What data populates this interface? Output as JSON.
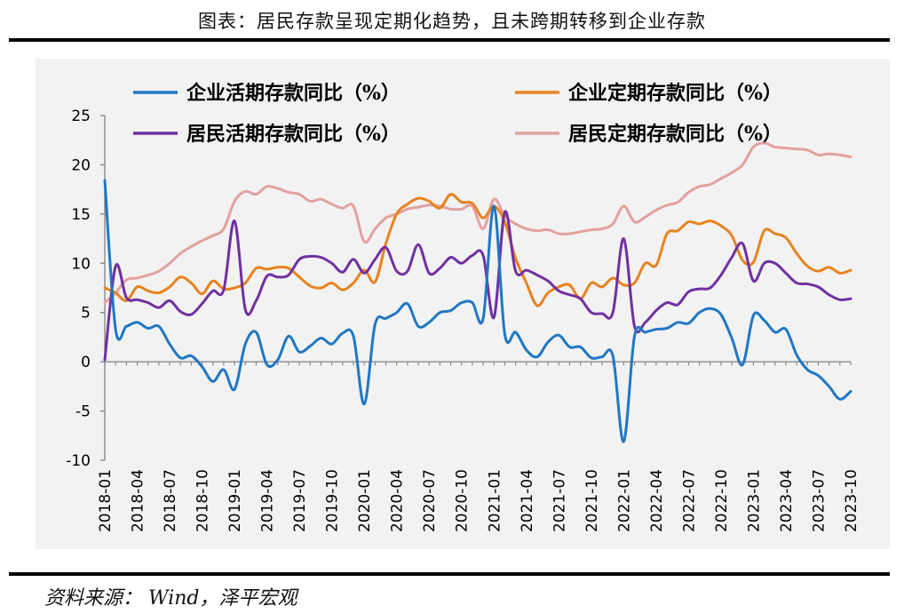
{
  "header": {
    "title": "图表：居民存款呈现定期化趋势，且未跨期转移到企业存款"
  },
  "footer": {
    "source": "资料来源：  Wind，泽平宏观"
  },
  "chart_data": {
    "type": "line",
    "title": "图表：居民存款呈现定期化趋势，且未跨期转移到企业存款",
    "xlabel": "",
    "ylabel": "",
    "ylim": [
      -10,
      25
    ],
    "yticks": [
      25,
      20,
      15,
      10,
      5,
      0,
      -5,
      -10
    ],
    "yticks_text": [
      "25",
      "20",
      "15",
      "10",
      "5",
      "0",
      "-5",
      "-10"
    ],
    "x_tick_labels": [
      "2018-01",
      "2018-04",
      "2018-07",
      "2018-10",
      "2019-01",
      "2019-04",
      "2019-07",
      "2019-10",
      "2020-01",
      "2020-04",
      "2020-07",
      "2020-10",
      "2021-01",
      "2021-04",
      "2021-07",
      "2021-10",
      "2022-01",
      "2022-04",
      "2022-07",
      "2022-10",
      "2023-01",
      "2023-04",
      "2023-07",
      "2023-10"
    ],
    "legend_position": "top",
    "grid": false,
    "series": [
      {
        "name": "企业活期存款同比（%）",
        "color": "#1f77c4",
        "values": [
          18.4,
          3.3,
          3.6,
          4.0,
          3.4,
          3.6,
          1.8,
          0.4,
          0.6,
          -0.5,
          -2.0,
          -0.8,
          -2.8,
          1.8,
          3.0,
          -0.3,
          0.2,
          2.6,
          1.0,
          1.6,
          2.4,
          1.8,
          2.9,
          2.6,
          -4.3,
          3.8,
          4.4,
          5.0,
          5.9,
          3.6,
          4.0,
          5.0,
          5.2,
          6.0,
          6.0,
          4.4,
          15.8,
          2.8,
          3.0,
          1.2,
          0.5,
          2.0,
          2.7,
          1.5,
          1.5,
          0.4,
          0.5,
          0.6,
          -8.1,
          2.6,
          3.0,
          3.3,
          3.4,
          4.0,
          3.9,
          5.0,
          5.4,
          4.8,
          2.4,
          -0.3,
          4.7,
          4.2,
          3.0,
          3.3,
          0.7,
          -0.8,
          -1.4,
          -2.5,
          -3.8,
          -3.0
        ]
      },
      {
        "name": "企业定期存款同比（%）",
        "color": "#e8821e",
        "values": [
          7.5,
          7.0,
          6.2,
          7.6,
          7.2,
          7.0,
          7.6,
          8.6,
          8.0,
          6.9,
          8.2,
          7.4,
          7.5,
          8.0,
          9.5,
          9.4,
          9.6,
          9.5,
          8.6,
          7.7,
          7.5,
          8.0,
          7.3,
          8.0,
          9.3,
          8.1,
          12.0,
          15.0,
          16.0,
          16.6,
          16.3,
          15.6,
          17.0,
          16.2,
          16.1,
          14.6,
          15.8,
          14.2,
          10.5,
          8.0,
          5.7,
          7.0,
          7.6,
          7.8,
          6.4,
          8.0,
          7.6,
          8.5,
          7.8,
          8.0,
          10.0,
          9.8,
          13.0,
          13.3,
          14.2,
          14.0,
          14.3,
          13.8,
          12.8,
          10.3,
          10.1,
          13.3,
          13.0,
          12.6,
          11.0,
          9.7,
          9.2,
          9.6,
          9.0,
          9.3
        ]
      },
      {
        "name": "居民活期存款同比（%）",
        "color": "#7030a0",
        "values": [
          0.2,
          9.7,
          6.5,
          6.3,
          6.0,
          5.5,
          6.2,
          5.1,
          4.8,
          5.9,
          7.2,
          7.3,
          14.3,
          5.3,
          6.2,
          8.7,
          8.6,
          8.8,
          10.4,
          10.7,
          10.6,
          10.0,
          9.1,
          10.4,
          9.0,
          10.4,
          11.6,
          9.2,
          9.2,
          11.9,
          9.0,
          9.5,
          10.6,
          10.0,
          10.8,
          10.8,
          4.5,
          15.2,
          9.2,
          9.3,
          8.8,
          8.2,
          7.2,
          6.8,
          6.4,
          5.0,
          4.9,
          5.0,
          12.5,
          3.6,
          4.0,
          5.2,
          6.0,
          5.8,
          7.1,
          7.4,
          7.5,
          8.8,
          10.6,
          12.0,
          8.2,
          10.0,
          10.0,
          9.0,
          8.0,
          7.9,
          7.6,
          6.8,
          6.3,
          6.4
        ]
      },
      {
        "name": "居民定期存款同比（%）",
        "color": "#e3a0a0",
        "values": [
          6.0,
          7.0,
          8.3,
          8.5,
          8.8,
          9.2,
          10.0,
          11.0,
          11.7,
          12.3,
          12.8,
          13.5,
          16.3,
          17.3,
          17.0,
          17.8,
          17.6,
          17.2,
          17.0,
          16.3,
          16.5,
          16.0,
          15.6,
          15.8,
          12.2,
          13.5,
          14.6,
          15.0,
          15.5,
          15.7,
          15.9,
          15.8,
          15.5,
          15.5,
          15.8,
          13.5,
          16.5,
          14.8,
          14.0,
          13.5,
          13.3,
          13.4,
          13.0,
          13.0,
          13.2,
          13.4,
          13.5,
          14.0,
          15.8,
          14.2,
          14.7,
          15.4,
          15.9,
          16.2,
          17.2,
          17.8,
          18.0,
          18.6,
          19.2,
          20.0,
          21.8,
          22.2,
          21.8,
          21.7,
          21.6,
          21.5,
          21.0,
          21.1,
          21.0,
          20.8
        ]
      }
    ]
  }
}
